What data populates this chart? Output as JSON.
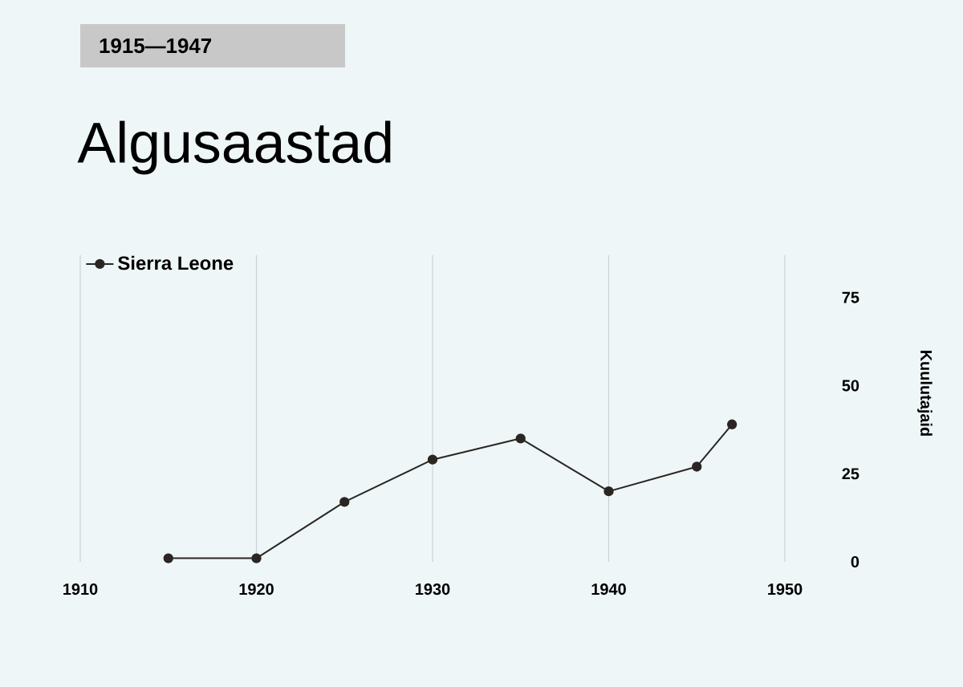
{
  "chart_data": {
    "type": "line",
    "title": "Algusaastad",
    "subtitle": "1915—1947",
    "ylabel": "Kuulutajaid",
    "x": [
      1915,
      1920,
      1925,
      1930,
      1935,
      1940,
      1945,
      1947
    ],
    "series": [
      {
        "name": "Sierra Leone",
        "color": "#2b2623",
        "values": [
          1,
          1,
          17,
          29,
          35,
          20,
          27,
          39
        ]
      }
    ],
    "xlim": [
      1910,
      1950
    ],
    "xticks": [
      1910,
      1920,
      1930,
      1940,
      1950
    ],
    "ylim": [
      0,
      87
    ],
    "yticks": [
      0,
      25,
      50,
      75
    ],
    "grid": "x",
    "legend": "top left",
    "marker": "circle",
    "line_style": "solid"
  }
}
